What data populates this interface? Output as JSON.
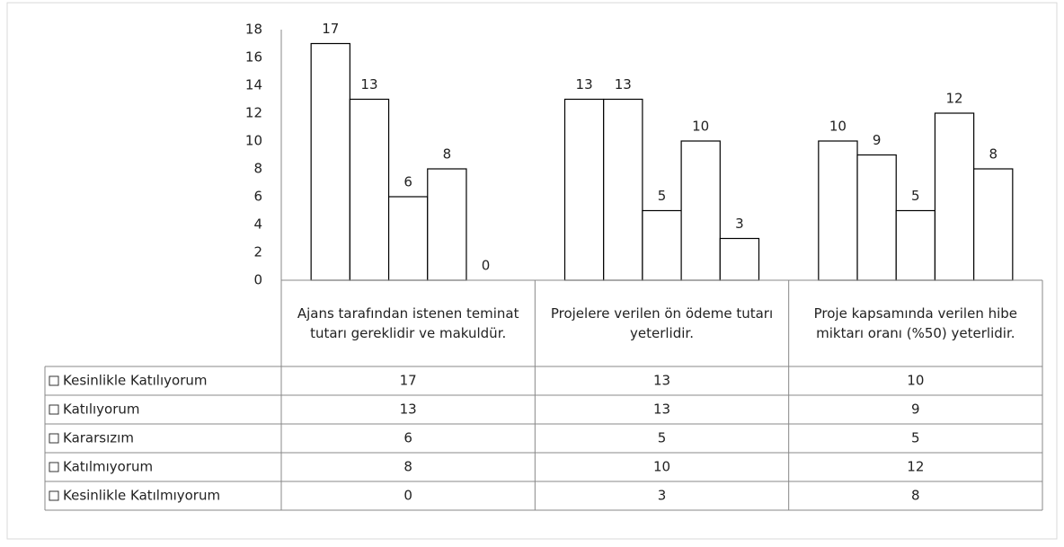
{
  "chart_data": {
    "type": "bar",
    "categories": [
      "Ajans tarafından istenen teminat tutarı gereklidir ve makuldür.",
      "Projelere verilen ön ödeme tutarı yeterlidir.",
      "Proje kapsamında verilen hibe miktarı oranı (%50) yeterlidir."
    ],
    "series": [
      {
        "name": "Kesinlikle Katılıyorum",
        "color": "#ffffff",
        "values": [
          17,
          13,
          10
        ]
      },
      {
        "name": "Katılıyorum",
        "color": "#ffffff",
        "values": [
          13,
          13,
          9
        ]
      },
      {
        "name": "Kararsızım",
        "color": "#ffffff",
        "values": [
          6,
          5,
          5
        ]
      },
      {
        "name": "Katılmıyorum",
        "color": "#ffffff",
        "values": [
          8,
          10,
          12
        ]
      },
      {
        "name": "Kesinlikle Katılmıyorum",
        "color": "#ffffff",
        "values": [
          0,
          3,
          8
        ]
      }
    ],
    "ylim": [
      0,
      18
    ],
    "yticks": [
      0,
      2,
      4,
      6,
      8,
      10,
      12,
      14,
      16,
      18
    ],
    "grid": false,
    "legend": "table"
  }
}
